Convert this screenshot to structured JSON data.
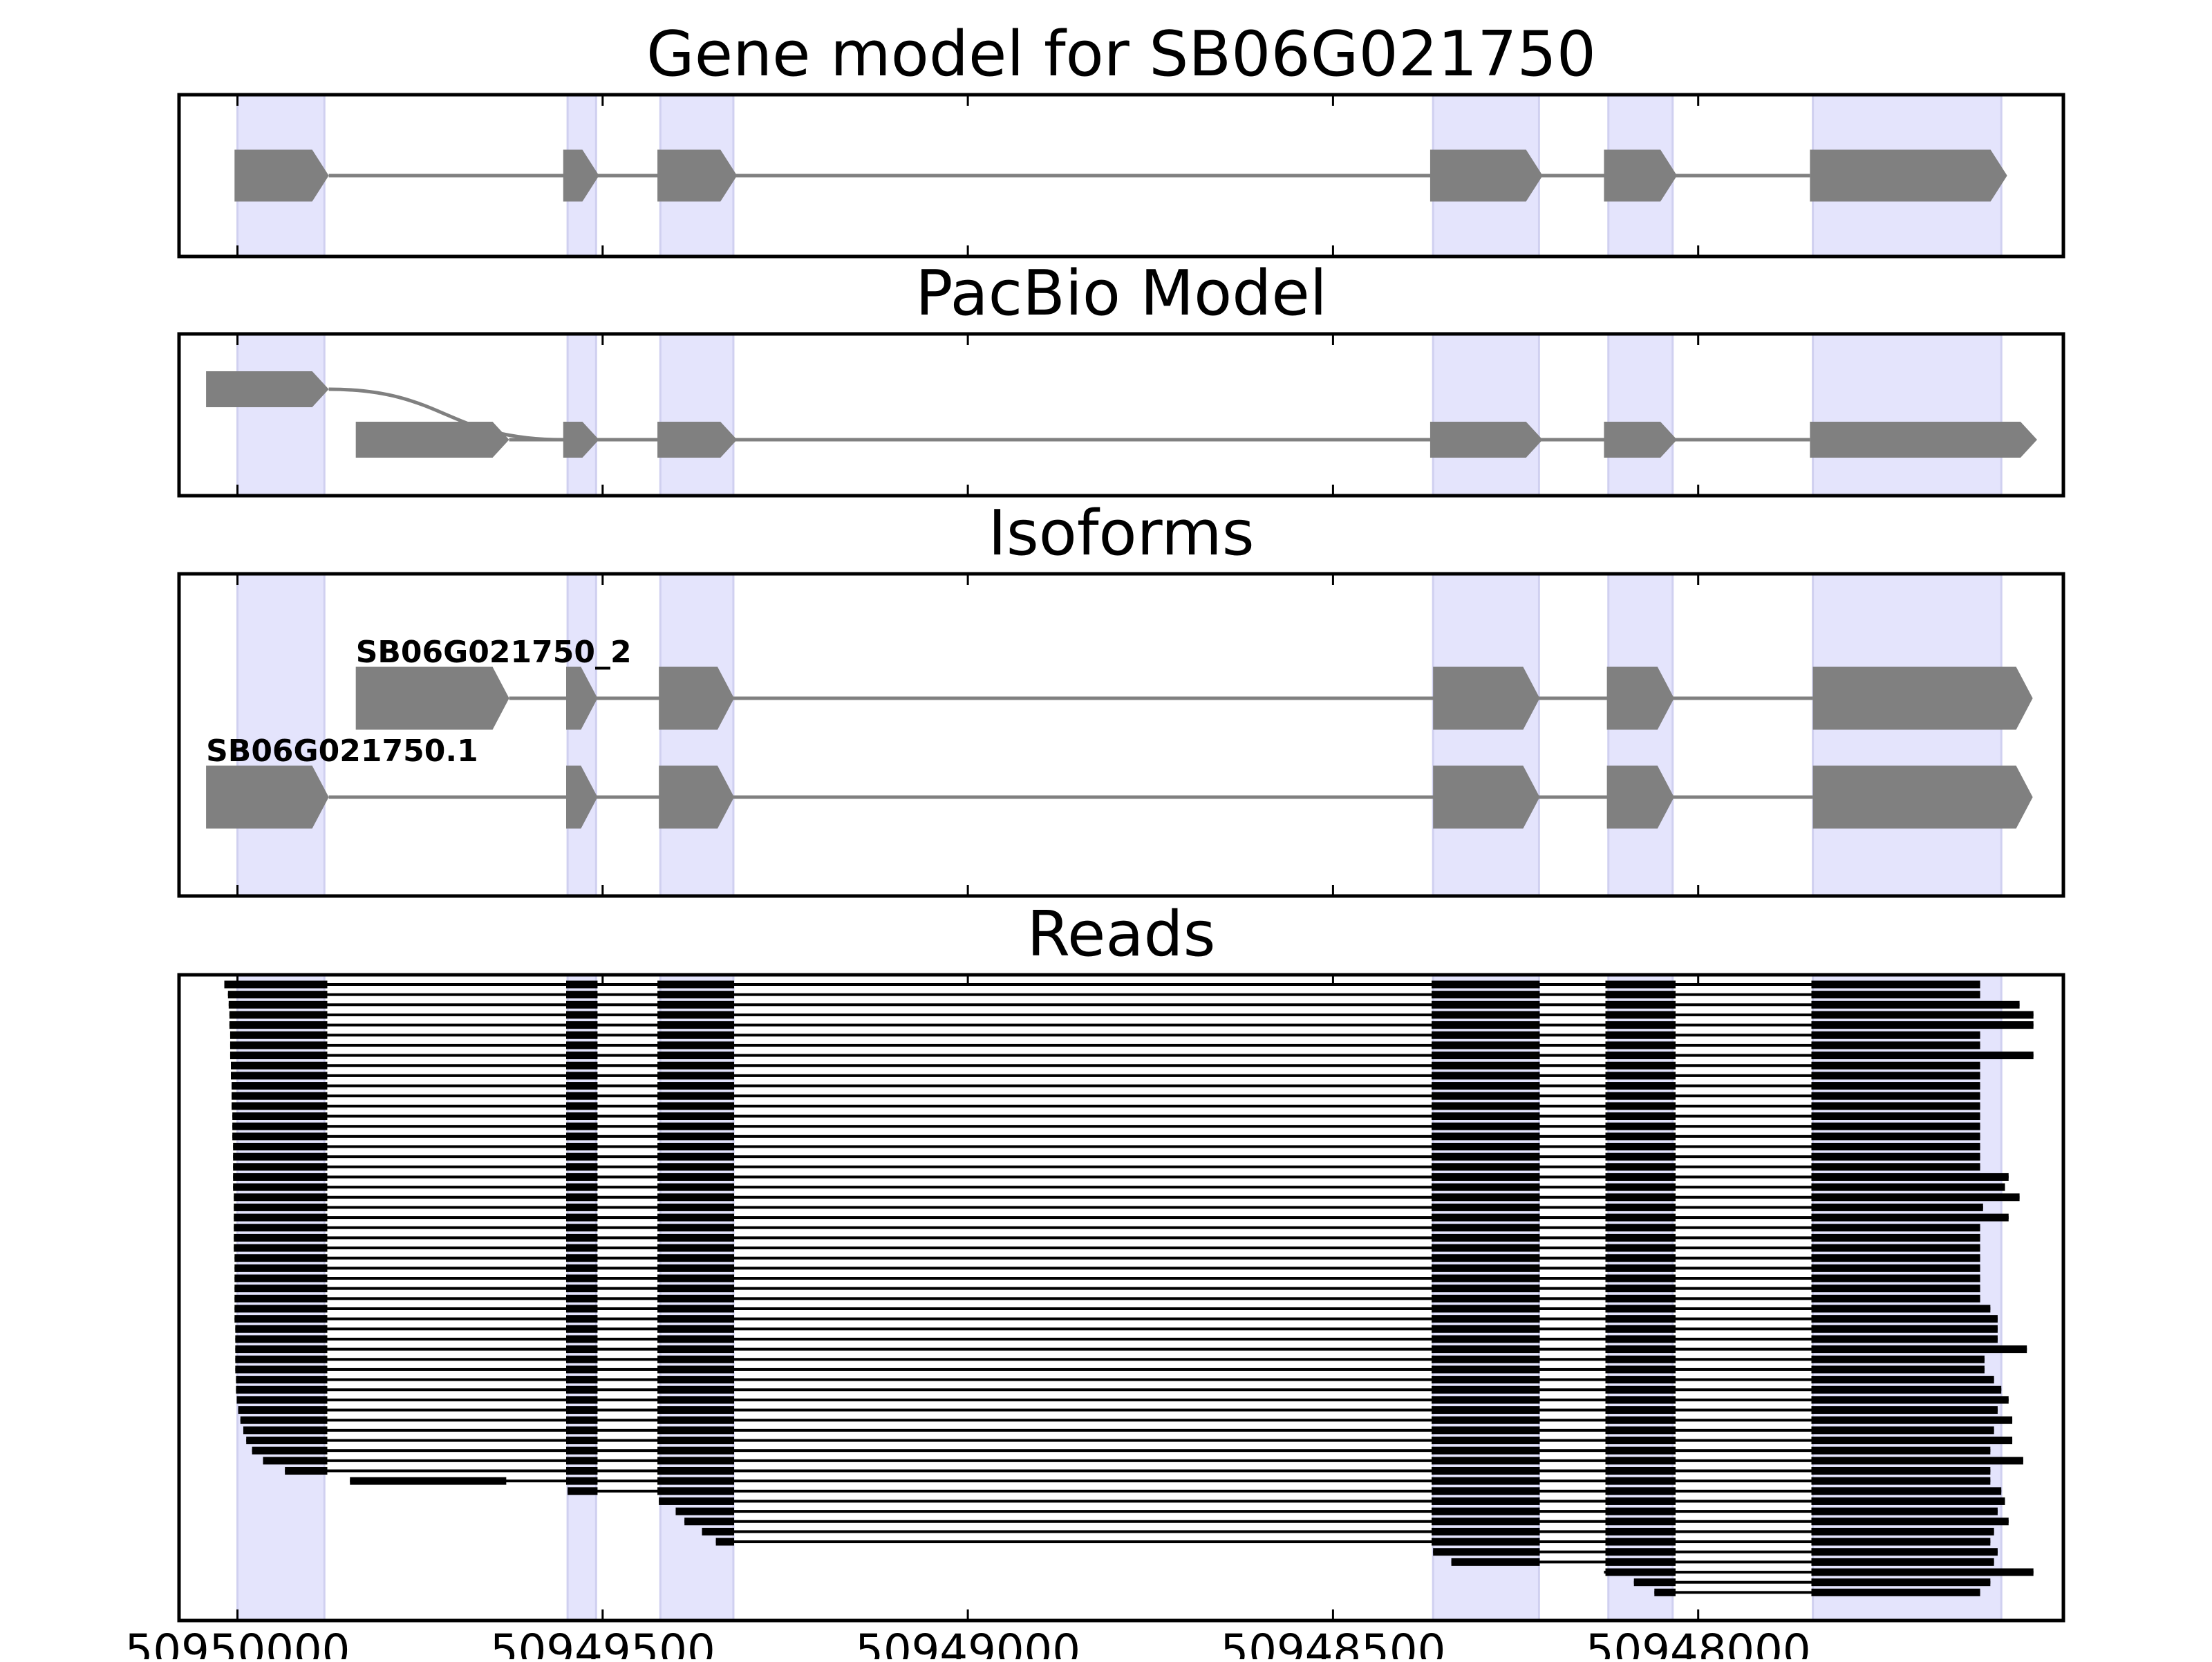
{
  "chart_data": [
    {
      "type": "gene_model",
      "title": "Gene model for SB06G021750",
      "xlim": [
        50950080,
        50947500
      ],
      "xticks": [
        50950000,
        50949500,
        50949000,
        50948500,
        50948000
      ],
      "highlight_regions": [
        [
          50950000,
          50949881
        ],
        [
          50949548,
          50949509
        ],
        [
          50949421,
          50949321
        ],
        [
          50948363,
          50948218
        ],
        [
          50948123,
          50948035
        ],
        [
          50947843,
          50947585
        ]
      ],
      "highlight_color": "#e4e4fc",
      "color": "#808080",
      "exons": [
        [
          50950004,
          50949875
        ],
        [
          50949554,
          50949505
        ],
        [
          50949425,
          50949316
        ],
        [
          50948367,
          50948213
        ],
        [
          50948129,
          50948029
        ],
        [
          50947847,
          50947577
        ]
      ]
    },
    {
      "type": "pacbio",
      "title": "PacBio Model",
      "xlim": [
        50950080,
        50947500
      ],
      "xticks": [
        50950000,
        50949500,
        50949000,
        50948500,
        50948000
      ],
      "highlight_regions": [
        [
          50950000,
          50949881
        ],
        [
          50949548,
          50949509
        ],
        [
          50949421,
          50949321
        ],
        [
          50948363,
          50948218
        ],
        [
          50948123,
          50948035
        ],
        [
          50947843,
          50947585
        ]
      ],
      "highlight_color": "#e4e4fc",
      "color": "#808080",
      "transcripts": [
        {
          "exons": [
            [
              50950043,
              50949875
            ]
          ]
        },
        {
          "exons": [
            [
              50949838,
              50949628
            ],
            [
              50949554,
              50949505
            ],
            [
              50949425,
              50949316
            ],
            [
              50948367,
              50948213
            ],
            [
              50948129,
              50948029
            ],
            [
              50947847,
              50947536
            ]
          ]
        }
      ]
    },
    {
      "type": "isoforms",
      "title": "Isoforms",
      "xlim": [
        50950080,
        50947500
      ],
      "xticks": [
        50950000,
        50949500,
        50949000,
        50948500,
        50948000
      ],
      "highlight_regions": [
        [
          50950000,
          50949881
        ],
        [
          50949548,
          50949509
        ],
        [
          50949421,
          50949321
        ],
        [
          50948363,
          50948218
        ],
        [
          50948123,
          50948035
        ],
        [
          50947843,
          50947585
        ]
      ],
      "highlight_color": "#e4e4fc",
      "color": "#808080",
      "transcripts": [
        {
          "name": "SB06G021750_2",
          "exons": [
            [
              50949838,
              50949628
            ],
            [
              50949550,
              50949507
            ],
            [
              50949423,
              50949320
            ],
            [
              50948363,
              50948217
            ],
            [
              50948125,
              50948033
            ],
            [
              50947843,
              50947542
            ]
          ]
        },
        {
          "name": "SB06G021750.1",
          "exons": [
            [
              50950043,
              50949875
            ],
            [
              50949550,
              50949507
            ],
            [
              50949423,
              50949320
            ],
            [
              50948363,
              50948217
            ],
            [
              50948125,
              50948033
            ],
            [
              50947843,
              50947542
            ]
          ]
        }
      ]
    },
    {
      "type": "reads",
      "title": "Reads",
      "xlim": [
        50950080,
        50947500
      ],
      "xticks": [
        50950000,
        50949500,
        50949000,
        50948500,
        50948000
      ],
      "highlight_regions": [
        [
          50950000,
          50949881
        ],
        [
          50949548,
          50949509
        ],
        [
          50949421,
          50949321
        ],
        [
          50948363,
          50948218
        ],
        [
          50948123,
          50948035
        ],
        [
          50947843,
          50947585
        ]
      ],
      "highlight_color": "#e4e4fc",
      "color": "#000000",
      "exons": [
        [
          50950020,
          50949877
        ],
        [
          50949550,
          50949507
        ],
        [
          50949425,
          50949320
        ],
        [
          50948365,
          50948217
        ],
        [
          50948127,
          50948031
        ],
        [
          50947845,
          50947530
        ]
      ],
      "reads": [
        {
          "start": 50950018,
          "end": 50947614
        },
        {
          "start": 50950013,
          "end": 50947614
        },
        {
          "start": 50950012,
          "end": 50947560
        },
        {
          "start": 50950011,
          "end": 50947541
        },
        {
          "start": 50950011,
          "end": 50947541
        },
        {
          "start": 50950010,
          "end": 50947614
        },
        {
          "start": 50950010,
          "end": 50947614
        },
        {
          "start": 50950010,
          "end": 50947541
        },
        {
          "start": 50950009,
          "end": 50947614
        },
        {
          "start": 50950009,
          "end": 50947614
        },
        {
          "start": 50950008,
          "end": 50947614
        },
        {
          "start": 50950008,
          "end": 50947614
        },
        {
          "start": 50950008,
          "end": 50947614
        },
        {
          "start": 50950007,
          "end": 50947614
        },
        {
          "start": 50950007,
          "end": 50947614
        },
        {
          "start": 50950007,
          "end": 50947614
        },
        {
          "start": 50950006,
          "end": 50947614
        },
        {
          "start": 50950006,
          "end": 50947614
        },
        {
          "start": 50950006,
          "end": 50947614
        },
        {
          "start": 50950006,
          "end": 50947575
        },
        {
          "start": 50950006,
          "end": 50947580
        },
        {
          "start": 50950005,
          "end": 50947560
        },
        {
          "start": 50950005,
          "end": 50947610
        },
        {
          "start": 50950005,
          "end": 50947575
        },
        {
          "start": 50950005,
          "end": 50947614
        },
        {
          "start": 50950005,
          "end": 50947614
        },
        {
          "start": 50950005,
          "end": 50947614
        },
        {
          "start": 50950004,
          "end": 50947614
        },
        {
          "start": 50950004,
          "end": 50947614
        },
        {
          "start": 50950004,
          "end": 50947614
        },
        {
          "start": 50950004,
          "end": 50947614
        },
        {
          "start": 50950004,
          "end": 50947614
        },
        {
          "start": 50950004,
          "end": 50947600
        },
        {
          "start": 50950004,
          "end": 50947590
        },
        {
          "start": 50950003,
          "end": 50947590
        },
        {
          "start": 50950003,
          "end": 50947590
        },
        {
          "start": 50950003,
          "end": 50947550
        },
        {
          "start": 50950003,
          "end": 50947608
        },
        {
          "start": 50950003,
          "end": 50947608
        },
        {
          "start": 50950002,
          "end": 50947595
        },
        {
          "start": 50950002,
          "end": 50947585
        },
        {
          "start": 50950001,
          "end": 50947575
        },
        {
          "start": 50949999,
          "end": 50947590
        },
        {
          "start": 50949996,
          "end": 50947570
        },
        {
          "start": 50949992,
          "end": 50947595
        },
        {
          "start": 50949988,
          "end": 50947570
        },
        {
          "start": 50949980,
          "end": 50947600
        },
        {
          "start": 50949965,
          "end": 50947555
        },
        {
          "start": 50949935,
          "end": 50947600
        },
        {
          "start": 50949846,
          "end": 50947600,
          "block": [
            50949846,
            50949632
          ]
        },
        {
          "start": 50949548,
          "end": 50947585
        },
        {
          "start": 50949423,
          "end": 50947580
        },
        {
          "start": 50949400,
          "end": 50947590
        },
        {
          "start": 50949388,
          "end": 50947575
        },
        {
          "start": 50949364,
          "end": 50947595
        },
        {
          "start": 50949345,
          "end": 50947600
        },
        {
          "start": 50948363,
          "end": 50947590
        },
        {
          "start": 50948338,
          "end": 50947595
        },
        {
          "start": 50948129,
          "end": 50947541
        },
        {
          "start": 50948088,
          "end": 50947600
        },
        {
          "start": 50948060,
          "end": 50947614
        }
      ]
    }
  ]
}
